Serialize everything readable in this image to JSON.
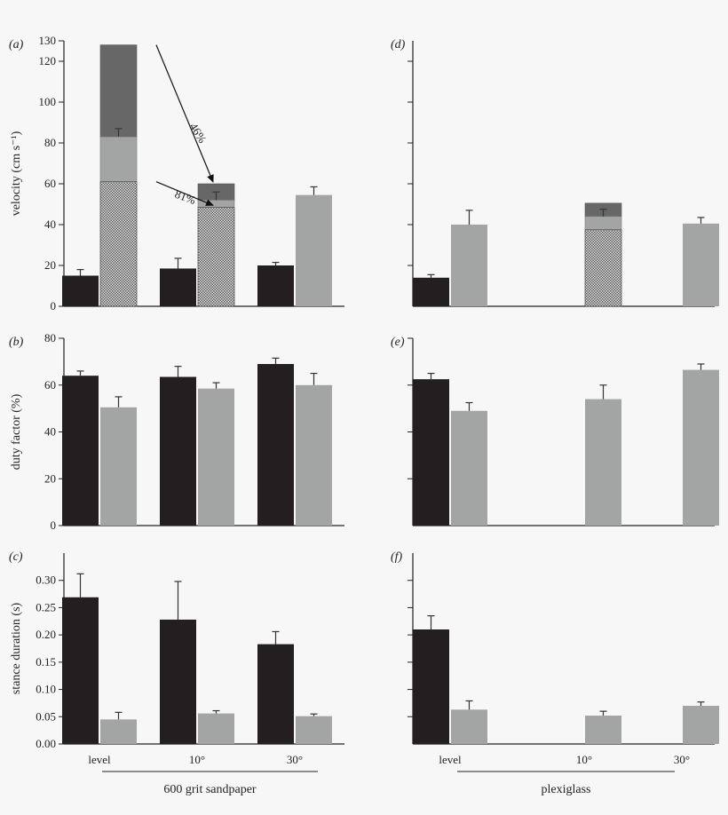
{
  "chart_data": [
    {
      "id": "a",
      "label": "(a)",
      "ylabel": "velocity (cm s⁻¹)",
      "type": "bar",
      "ylim": [
        0,
        130
      ],
      "ticks": [
        0,
        20,
        40,
        60,
        80,
        100,
        120,
        130
      ],
      "categories": [
        "level",
        "10°",
        "30°"
      ],
      "bars": [
        {
          "group": 0,
          "pos": "left",
          "color": "black",
          "value": 15,
          "err": 3
        },
        {
          "group": 0,
          "pos": "right",
          "color": "stack",
          "stack": [
            61,
            83,
            128
          ],
          "err_at": 83,
          "err": 4
        },
        {
          "group": 1,
          "pos": "left",
          "color": "black",
          "value": 18.5,
          "err": 5
        },
        {
          "group": 1,
          "pos": "right",
          "color": "stack",
          "stack": [
            48.5,
            52,
            60
          ],
          "err_at": 52,
          "err": 4
        },
        {
          "group": 2,
          "pos": "left",
          "color": "black",
          "value": 20,
          "err": 1.5
        },
        {
          "group": 2,
          "pos": "right",
          "color": "gray",
          "value": 54.5,
          "err": 4
        }
      ],
      "annotations": [
        "46%",
        "81%"
      ]
    },
    {
      "id": "d",
      "label": "(d)",
      "ylabel": "",
      "type": "bar",
      "ylim": [
        0,
        130
      ],
      "ticks": [
        20,
        40,
        60,
        80,
        100,
        120
      ],
      "categories": [
        "level",
        "10°",
        "30°"
      ],
      "bars": [
        {
          "group": 0,
          "pos": "left",
          "color": "black",
          "value": 14,
          "err": 1.5
        },
        {
          "group": 0,
          "pos": "right",
          "color": "gray",
          "value": 40,
          "err": 7
        },
        {
          "group": 1,
          "pos": "right",
          "color": "stack",
          "stack": [
            37.5,
            44,
            50.5
          ],
          "err_at": 44,
          "err": 3.5
        },
        {
          "group": 2,
          "pos": "right",
          "color": "gray",
          "value": 40.5,
          "err": 3
        }
      ]
    },
    {
      "id": "b",
      "label": "(b)",
      "ylabel": "duty factor (%)",
      "type": "bar",
      "ylim": [
        0,
        80
      ],
      "ticks": [
        0,
        20,
        40,
        60,
        80
      ],
      "categories": [
        "level",
        "10°",
        "30°"
      ],
      "bars": [
        {
          "group": 0,
          "pos": "left",
          "color": "black",
          "value": 64,
          "err": 2
        },
        {
          "group": 0,
          "pos": "right",
          "color": "gray",
          "value": 50.5,
          "err": 4.5
        },
        {
          "group": 1,
          "pos": "left",
          "color": "black",
          "value": 63.5,
          "err": 4.5
        },
        {
          "group": 1,
          "pos": "right",
          "color": "gray",
          "value": 58.5,
          "err": 2.5
        },
        {
          "group": 2,
          "pos": "left",
          "color": "black",
          "value": 69,
          "err": 2.5
        },
        {
          "group": 2,
          "pos": "right",
          "color": "gray",
          "value": 60,
          "err": 5
        }
      ]
    },
    {
      "id": "e",
      "label": "(e)",
      "ylabel": "",
      "type": "bar",
      "ylim": [
        0,
        80
      ],
      "ticks": [
        20,
        40,
        60,
        80
      ],
      "categories": [
        "level",
        "10°",
        "30°"
      ],
      "bars": [
        {
          "group": 0,
          "pos": "left",
          "color": "black",
          "value": 62.5,
          "err": 2.5
        },
        {
          "group": 0,
          "pos": "right",
          "color": "gray",
          "value": 49,
          "err": 3.5
        },
        {
          "group": 1,
          "pos": "right",
          "color": "gray",
          "value": 54,
          "err": 6
        },
        {
          "group": 2,
          "pos": "right",
          "color": "gray",
          "value": 66.5,
          "err": 2.5
        }
      ]
    },
    {
      "id": "c",
      "label": "(c)",
      "ylabel": "stance duration (s)",
      "type": "bar",
      "ylim": [
        0,
        0.35
      ],
      "ticks": [
        0,
        0.05,
        0.1,
        0.15,
        0.2,
        0.25,
        0.3
      ],
      "tick_format": 2,
      "categories": [
        "level",
        "10°",
        "30°"
      ],
      "bars": [
        {
          "group": 0,
          "pos": "left",
          "color": "black",
          "value": 0.269,
          "err": 0.043
        },
        {
          "group": 0,
          "pos": "right",
          "color": "gray",
          "value": 0.045,
          "err": 0.013
        },
        {
          "group": 1,
          "pos": "left",
          "color": "black",
          "value": 0.228,
          "err": 0.07
        },
        {
          "group": 1,
          "pos": "right",
          "color": "gray",
          "value": 0.056,
          "err": 0.005
        },
        {
          "group": 2,
          "pos": "left",
          "color": "black",
          "value": 0.183,
          "err": 0.023
        },
        {
          "group": 2,
          "pos": "right",
          "color": "gray",
          "value": 0.051,
          "err": 0.004
        }
      ],
      "group_label": "600 grit sandpaper"
    },
    {
      "id": "f",
      "label": "(f)",
      "ylabel": "",
      "type": "bar",
      "ylim": [
        0,
        0.35
      ],
      "ticks": [
        0.05,
        0.1,
        0.15,
        0.2,
        0.25,
        0.3
      ],
      "categories": [
        "level",
        "10°",
        "30°"
      ],
      "bars": [
        {
          "group": 0,
          "pos": "left",
          "color": "black",
          "value": 0.21,
          "err": 0.025
        },
        {
          "group": 0,
          "pos": "right",
          "color": "gray",
          "value": 0.063,
          "err": 0.016
        },
        {
          "group": 1,
          "pos": "right",
          "color": "gray",
          "value": 0.052,
          "err": 0.008
        },
        {
          "group": 2,
          "pos": "right",
          "color": "gray",
          "value": 0.07,
          "err": 0.007
        }
      ],
      "group_label": "plexiglass"
    }
  ],
  "colors": {
    "black": "#231f20",
    "gray": "#a3a4a4",
    "stack_mid": "#a3a4a4",
    "stack_top": "#676767",
    "grid_fill": "#cfcfcf"
  }
}
